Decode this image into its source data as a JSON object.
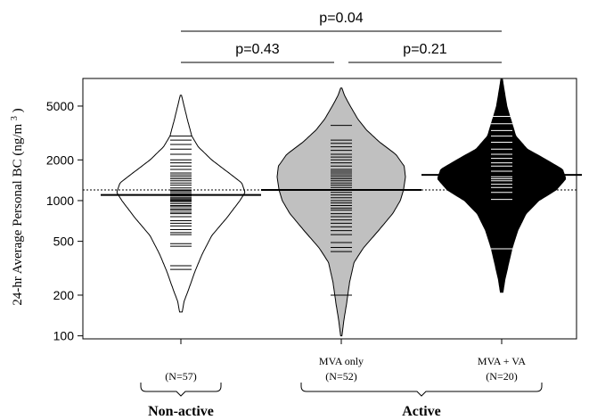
{
  "chart_data": {
    "type": "beanplot",
    "ylabel": "24-hr Average Personal BC (ng/m",
    "ylabel_sup": "3",
    "ylabel_close": ")",
    "y_scale": "log",
    "ylim": [
      95,
      8000
    ],
    "y_ticks": [
      100,
      200,
      500,
      1000,
      2000,
      5000
    ],
    "y_tick_labels": [
      "100",
      "200",
      "500",
      "1000",
      "2000",
      "5000"
    ],
    "overall_mean": 1200,
    "groups": [
      {
        "label_lines": [
          "",
          "(N=57)"
        ],
        "fill": "#ffffff",
        "rug_color": "#000000",
        "mean": 1100,
        "min": 150,
        "max": 6000,
        "density_profile": [
          [
            150,
            0.02
          ],
          [
            180,
            0.05
          ],
          [
            220,
            0.12
          ],
          [
            300,
            0.22
          ],
          [
            400,
            0.33
          ],
          [
            550,
            0.48
          ],
          [
            750,
            0.72
          ],
          [
            1000,
            0.92
          ],
          [
            1150,
            1.0
          ],
          [
            1350,
            0.95
          ],
          [
            1600,
            0.75
          ],
          [
            2000,
            0.48
          ],
          [
            2500,
            0.27
          ],
          [
            3000,
            0.17
          ],
          [
            4000,
            0.1
          ],
          [
            5000,
            0.05
          ],
          [
            6000,
            0.01
          ]
        ],
        "observations": [
          310,
          330,
          460,
          480,
          560,
          580,
          610,
          650,
          680,
          710,
          760,
          800,
          820,
          850,
          870,
          900,
          920,
          950,
          980,
          1000,
          1010,
          1030,
          1050,
          1080,
          1100,
          1120,
          1150,
          1180,
          1200,
          1240,
          1300,
          1350,
          1400,
          1450,
          1500,
          1550,
          1600,
          1700,
          1800,
          1900,
          2000,
          2200,
          2400,
          2600,
          2800,
          3000
        ]
      },
      {
        "label_lines": [
          "MVA only",
          "(N=52)"
        ],
        "fill": "#c0c0c0",
        "rug_color": "#000000",
        "mean": 1200,
        "min": 100,
        "max": 6800,
        "density_profile": [
          [
            100,
            0.01
          ],
          [
            130,
            0.04
          ],
          [
            170,
            0.08
          ],
          [
            250,
            0.13
          ],
          [
            350,
            0.2
          ],
          [
            450,
            0.35
          ],
          [
            600,
            0.58
          ],
          [
            800,
            0.8
          ],
          [
            1000,
            0.92
          ],
          [
            1200,
            0.97
          ],
          [
            1500,
            1.0
          ],
          [
            1800,
            0.98
          ],
          [
            2200,
            0.85
          ],
          [
            2700,
            0.6
          ],
          [
            3300,
            0.4
          ],
          [
            4000,
            0.26
          ],
          [
            5000,
            0.14
          ],
          [
            6000,
            0.05
          ],
          [
            6800,
            0.01
          ]
        ],
        "observations": [
          200,
          420,
          450,
          490,
          560,
          600,
          640,
          680,
          720,
          760,
          800,
          850,
          880,
          920,
          960,
          1000,
          1050,
          1100,
          1150,
          1200,
          1250,
          1300,
          1350,
          1400,
          1450,
          1500,
          1550,
          1600,
          1650,
          1700,
          1800,
          1900,
          2000,
          2100,
          2200,
          2350,
          2500,
          2650,
          2800,
          3600
        ]
      },
      {
        "label_lines": [
          "MVA + VA",
          "(N=20)"
        ],
        "fill": "#000000",
        "rug_color": "#ffffff",
        "mean": 1550,
        "min": 210,
        "max": 8000,
        "density_profile": [
          [
            210,
            0.02
          ],
          [
            260,
            0.05
          ],
          [
            330,
            0.1
          ],
          [
            440,
            0.16
          ],
          [
            600,
            0.25
          ],
          [
            800,
            0.38
          ],
          [
            1000,
            0.58
          ],
          [
            1200,
            0.85
          ],
          [
            1450,
            1.0
          ],
          [
            1700,
            0.95
          ],
          [
            2000,
            0.7
          ],
          [
            2400,
            0.4
          ],
          [
            3000,
            0.22
          ],
          [
            4000,
            0.14
          ],
          [
            5000,
            0.08
          ],
          [
            6500,
            0.04
          ],
          [
            8000,
            0.01
          ]
        ],
        "observations": [
          440,
          1020,
          1150,
          1250,
          1320,
          1400,
          1450,
          1500,
          1650,
          1800,
          1900,
          2050,
          2200,
          2400,
          2700,
          3000,
          3300,
          3700,
          4200
        ]
      }
    ],
    "brackets": [
      {
        "label": "p=0.04",
        "from": 0,
        "to": 2,
        "level": 1
      },
      {
        "label": "p=0.43",
        "from": 0,
        "to": 1,
        "level": 0
      },
      {
        "label": "p=0.21",
        "from": 1,
        "to": 2,
        "level": 0
      }
    ],
    "categories": [
      {
        "label": "Non-active",
        "groups": [
          0
        ]
      },
      {
        "label": "Active",
        "groups": [
          1,
          2
        ]
      }
    ]
  }
}
